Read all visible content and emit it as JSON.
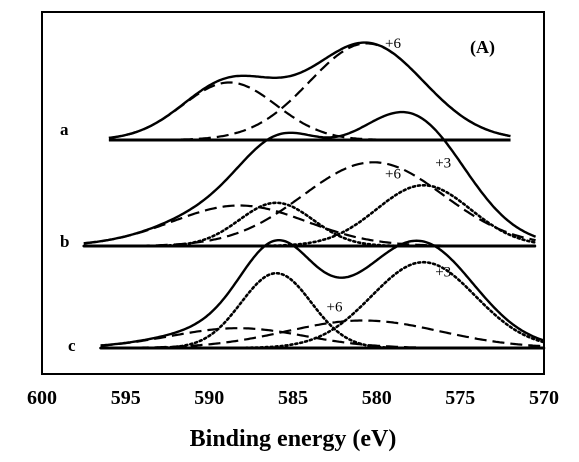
{
  "chart_data": {
    "type": "line",
    "panel_tag": "(A)",
    "xlabel": "Binding energy (eV)",
    "ylabel": "",
    "xlim": [
      600,
      570
    ],
    "x_ticks": [
      600,
      595,
      590,
      585,
      580,
      575,
      570
    ],
    "x_reversed": true,
    "grid": false,
    "traces": [
      {
        "label": "a",
        "x_range": [
          596,
          572
        ],
        "annotations": [
          {
            "text": "+6",
            "x": 579.5,
            "y": 0.8
          }
        ],
        "components": [
          {
            "name": "",
            "style": "solid",
            "kind": "envelope"
          },
          {
            "name": "",
            "style": "dashed",
            "center": 588.8,
            "width": 2.8,
            "height": 0.5
          },
          {
            "name": "",
            "style": "dashed",
            "center": 580.6,
            "width": 3.4,
            "height": 0.84
          }
        ]
      },
      {
        "label": "b",
        "x_range": [
          597.5,
          570.5
        ],
        "annotations": [
          {
            "text": "+6",
            "x": 579.5,
            "y": 0.5
          },
          {
            "text": "+3",
            "x": 576.5,
            "y": 0.58
          }
        ],
        "components": [
          {
            "name": "",
            "style": "solid",
            "kind": "envelope"
          },
          {
            "name": "",
            "style": "dashed",
            "center": 588.2,
            "width": 4.0,
            "height": 0.3
          },
          {
            "name": "",
            "style": "dotted",
            "center": 586.0,
            "width": 2.2,
            "height": 0.32
          },
          {
            "name": "",
            "style": "dashed",
            "center": 580.2,
            "width": 4.2,
            "height": 0.62
          },
          {
            "name": "",
            "style": "dotted",
            "center": 577.2,
            "width": 2.8,
            "height": 0.45
          }
        ]
      },
      {
        "label": "c",
        "x_range": [
          596.5,
          570
        ],
        "annotations": [
          {
            "text": "+6",
            "x": 583.0,
            "y": 0.33
          },
          {
            "text": "+3",
            "x": 576.5,
            "y": 0.65
          }
        ],
        "components": [
          {
            "name": "",
            "style": "solid",
            "kind": "envelope"
          },
          {
            "name": "",
            "style": "dashed",
            "center": 588.3,
            "width": 4.0,
            "height": 0.18
          },
          {
            "name": "",
            "style": "dotted",
            "center": 586.0,
            "width": 2.1,
            "height": 0.68
          },
          {
            "name": "",
            "style": "dashed",
            "center": 580.8,
            "width": 4.6,
            "height": 0.25
          },
          {
            "name": "",
            "style": "dotted",
            "center": 577.2,
            "width": 3.1,
            "height": 0.78
          }
        ]
      }
    ]
  }
}
